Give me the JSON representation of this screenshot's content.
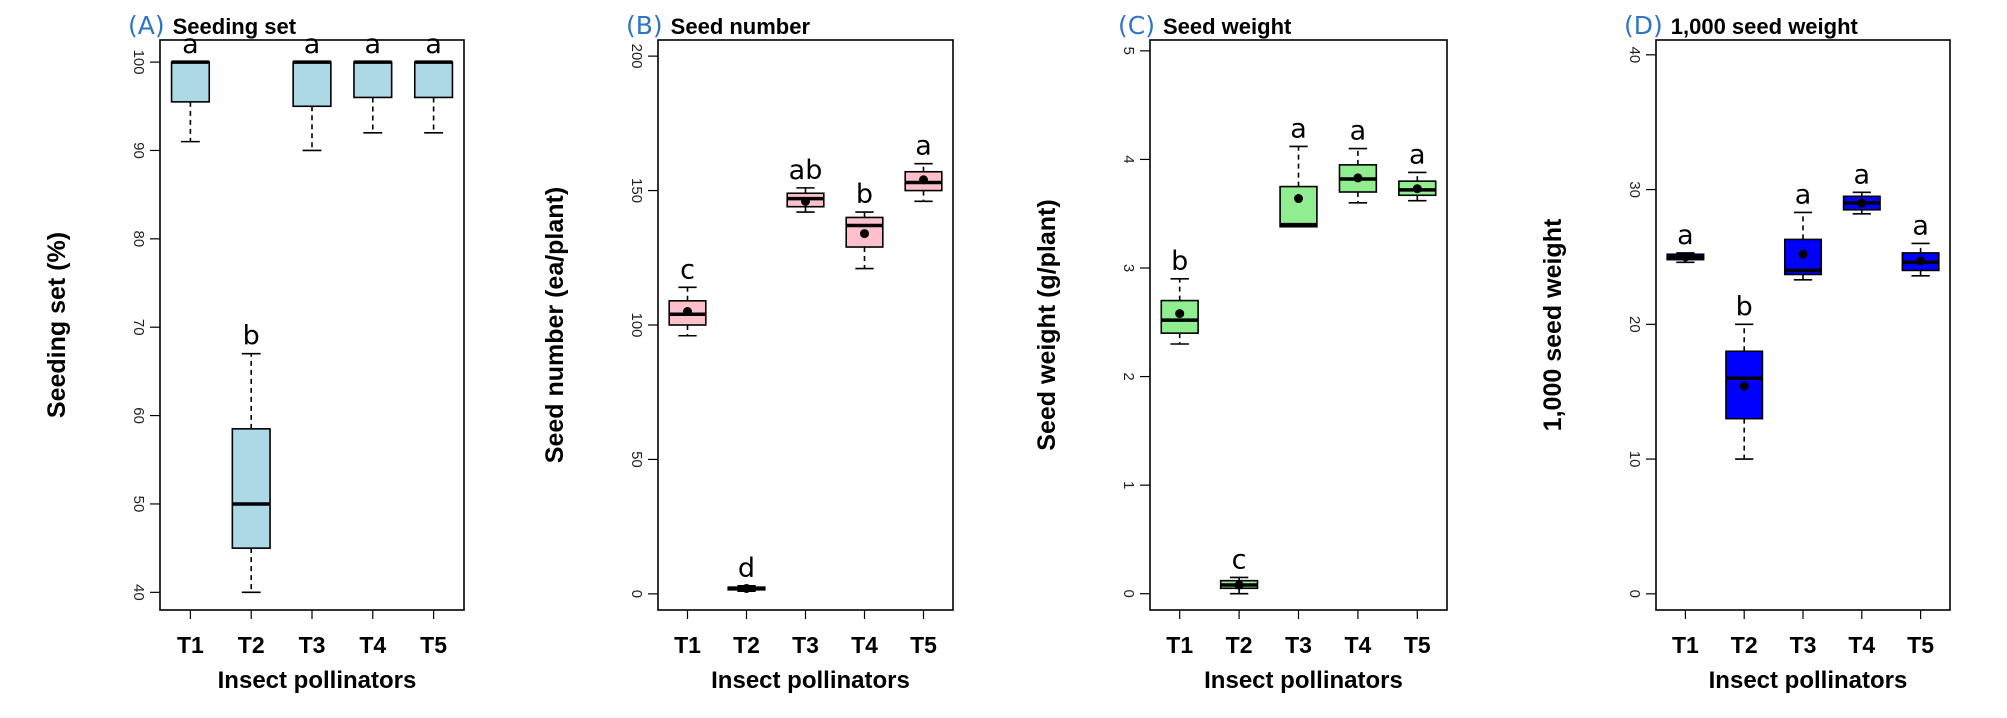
{
  "chart_data": [
    {
      "type": "box",
      "panel_letter": "(A)",
      "title": "Seeding set",
      "xlabel": "Insect pollinators",
      "ylabel": "Seeding set (%)",
      "ylim": [
        38,
        102.5
      ],
      "yticks": [
        40,
        50,
        60,
        70,
        80,
        90,
        100
      ],
      "fill_color": "#add8e6",
      "categories": [
        "T1",
        "T2",
        "T3",
        "T4",
        "T5"
      ],
      "boxes": [
        {
          "min": 91,
          "q1": 95.5,
          "median": 100,
          "q3": 100,
          "max": 100,
          "mean": null,
          "letter": "a"
        },
        {
          "min": 40,
          "q1": 45,
          "median": 50,
          "q3": 58.5,
          "max": 67,
          "mean": null,
          "letter": "b"
        },
        {
          "min": 90,
          "q1": 95,
          "median": 100,
          "q3": 100,
          "max": 100,
          "mean": null,
          "letter": "a"
        },
        {
          "min": 92,
          "q1": 96,
          "median": 100,
          "q3": 100,
          "max": 100,
          "mean": null,
          "letter": "a"
        },
        {
          "min": 92,
          "q1": 96,
          "median": 100,
          "q3": 100,
          "max": 100,
          "mean": null,
          "letter": "a"
        }
      ]
    },
    {
      "type": "box",
      "panel_letter": "(B)",
      "title": "Seed number",
      "xlabel": "Insect pollinators",
      "ylabel": "Seed number (ea/plant)",
      "ylim": [
        -6,
        206
      ],
      "yticks": [
        0,
        50,
        100,
        150,
        200
      ],
      "fill_color": "#ffc0cb",
      "categories": [
        "T1",
        "T2",
        "T3",
        "T4",
        "T5"
      ],
      "boxes": [
        {
          "min": 96,
          "q1": 100,
          "median": 104,
          "q3": 109,
          "max": 114,
          "mean": 105,
          "letter": "c"
        },
        {
          "min": 1,
          "q1": 1.5,
          "median": 2,
          "q3": 2.5,
          "max": 3,
          "mean": 2,
          "letter": "d"
        },
        {
          "min": 142,
          "q1": 144,
          "median": 147,
          "q3": 149,
          "max": 151,
          "mean": 146,
          "letter": "ab"
        },
        {
          "min": 121,
          "q1": 129,
          "median": 137,
          "q3": 140,
          "max": 142,
          "mean": 134,
          "letter": "b"
        },
        {
          "min": 146,
          "q1": 150,
          "median": 153,
          "q3": 157,
          "max": 160,
          "mean": 154,
          "letter": "a"
        }
      ]
    },
    {
      "type": "box",
      "panel_letter": "(C)",
      "title": "Seed weight",
      "xlabel": "Insect pollinators",
      "ylabel": "Seed weight (g/plant)",
      "ylim": [
        -0.15,
        5.1
      ],
      "yticks": [
        0,
        1,
        2,
        3,
        4,
        5
      ],
      "fill_color": "#90ee90",
      "categories": [
        "T1",
        "T2",
        "T3",
        "T4",
        "T5"
      ],
      "boxes": [
        {
          "min": 2.3,
          "q1": 2.4,
          "median": 2.52,
          "q3": 2.7,
          "max": 2.9,
          "mean": 2.58,
          "letter": "b"
        },
        {
          "min": 0,
          "q1": 0.05,
          "median": 0.08,
          "q3": 0.12,
          "max": 0.15,
          "mean": 0.08,
          "letter": "c"
        },
        {
          "min": 3.38,
          "q1": 3.38,
          "median": 3.4,
          "q3": 3.75,
          "max": 4.12,
          "mean": 3.64,
          "letter": "a"
        },
        {
          "min": 3.6,
          "q1": 3.7,
          "median": 3.82,
          "q3": 3.95,
          "max": 4.1,
          "mean": 3.83,
          "letter": "a"
        },
        {
          "min": 3.62,
          "q1": 3.67,
          "median": 3.72,
          "q3": 3.8,
          "max": 3.88,
          "mean": 3.73,
          "letter": "a"
        }
      ]
    },
    {
      "type": "box",
      "panel_letter": "(D)",
      "title": "1,000 seed weight",
      "xlabel": "Insect pollinators",
      "ylabel": "1,000 seed weight",
      "ylim": [
        -1.2,
        41.1
      ],
      "yticks": [
        0,
        10,
        20,
        30,
        40
      ],
      "fill_color": "#0000ff",
      "categories": [
        "T1",
        "T2",
        "T3",
        "T4",
        "T5"
      ],
      "boxes": [
        {
          "min": 24.6,
          "q1": 24.8,
          "median": 25,
          "q3": 25.2,
          "max": 25.3,
          "mean": 25,
          "letter": "a"
        },
        {
          "min": 10,
          "q1": 13,
          "median": 16,
          "q3": 18,
          "max": 20,
          "mean": 15.4,
          "letter": "b"
        },
        {
          "min": 23.3,
          "q1": 23.7,
          "median": 24,
          "q3": 26.3,
          "max": 28.3,
          "mean": 25.2,
          "letter": "a"
        },
        {
          "min": 28.2,
          "q1": 28.5,
          "median": 29,
          "q3": 29.5,
          "max": 29.8,
          "mean": 29,
          "letter": "a"
        },
        {
          "min": 23.6,
          "q1": 24,
          "median": 24.6,
          "q3": 25.3,
          "max": 26,
          "mean": 24.7,
          "letter": "a"
        }
      ]
    }
  ]
}
